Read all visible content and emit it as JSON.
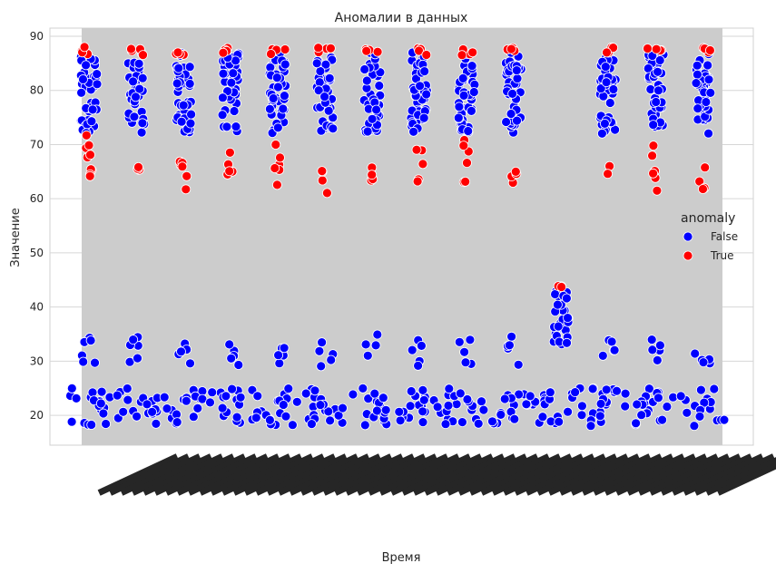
{
  "chart_data": {
    "type": "scatter",
    "title": "Аномалии в данных",
    "xlabel": "Время",
    "ylabel": "Значение",
    "ylim": [
      14.5,
      91.5
    ],
    "yticks": [
      20,
      30,
      40,
      50,
      60,
      70,
      80,
      90
    ],
    "grid": true,
    "legend": {
      "title": "anomaly",
      "placement": "center-right"
    },
    "x_tick_labels_note_hidden": true,
    "series": [
      {
        "name": "False",
        "color": "#0000ff",
        "clusters": [
          {
            "group": 0,
            "y_range": [
              72,
              87
            ],
            "count": 45
          },
          {
            "group": 1,
            "y_range": [
              72,
              87
            ],
            "count": 40
          },
          {
            "group": 2,
            "y_range": [
              72,
              87
            ],
            "count": 40
          },
          {
            "group": 3,
            "y_range": [
              72,
              87
            ],
            "count": 40
          },
          {
            "group": 4,
            "y_range": [
              72,
              87
            ],
            "count": 40
          },
          {
            "group": 5,
            "y_range": [
              72,
              87
            ],
            "count": 40
          },
          {
            "group": 6,
            "y_range": [
              72,
              87
            ],
            "count": 40
          },
          {
            "group": 7,
            "y_range": [
              72,
              87
            ],
            "count": 40
          },
          {
            "group": 8,
            "y_range": [
              72,
              87
            ],
            "count": 40
          },
          {
            "group": 9,
            "y_range": [
              72,
              87
            ],
            "count": 40
          },
          {
            "group": 11,
            "y_range": [
              72,
              87
            ],
            "count": 40
          },
          {
            "group": 12,
            "y_range": [
              72,
              87
            ],
            "count": 40
          },
          {
            "group": 13,
            "y_range": [
              72,
              87
            ],
            "count": 40
          },
          {
            "group": 10,
            "y_range": [
              33,
              43
            ],
            "count": 30
          },
          {
            "group": 0,
            "y_range": [
              29,
              35
            ],
            "count": 6
          },
          {
            "group": 1,
            "y_range": [
              29,
              35
            ],
            "count": 6
          },
          {
            "group": 2,
            "y_range": [
              29,
              34
            ],
            "count": 5
          },
          {
            "group": 3,
            "y_range": [
              29,
              34
            ],
            "count": 5
          },
          {
            "group": 4,
            "y_range": [
              29,
              34
            ],
            "count": 5
          },
          {
            "group": 5,
            "y_range": [
              29,
              34
            ],
            "count": 5
          },
          {
            "group": 6,
            "y_range": [
              31,
              35
            ],
            "count": 4
          },
          {
            "group": 7,
            "y_range": [
              29,
              34
            ],
            "count": 5
          },
          {
            "group": 8,
            "y_range": [
              29,
              34
            ],
            "count": 5
          },
          {
            "group": 9,
            "y_range": [
              29,
              35
            ],
            "count": 5
          },
          {
            "group": 11,
            "y_range": [
              29,
              34
            ],
            "count": 5
          },
          {
            "group": 12,
            "y_range": [
              29,
              34
            ],
            "count": 5
          },
          {
            "group": 13,
            "y_range": [
              29,
              35
            ],
            "count": 5
          },
          {
            "group": "all",
            "y_range": [
              18,
              25
            ],
            "count": 260
          }
        ]
      },
      {
        "name": "True",
        "color": "#ff0000",
        "clusters": [
          {
            "group": 0,
            "y_range": [
              63,
              72
            ],
            "count": 9
          },
          {
            "group": 1,
            "y_range": [
              64,
              66
            ],
            "count": 3
          },
          {
            "group": 2,
            "y_range": [
              61,
              71
            ],
            "count": 6
          },
          {
            "group": 3,
            "y_range": [
              62,
              71
            ],
            "count": 5
          },
          {
            "group": 4,
            "y_range": [
              61,
              71
            ],
            "count": 6
          },
          {
            "group": 5,
            "y_range": [
              61,
              66
            ],
            "count": 4
          },
          {
            "group": 6,
            "y_range": [
              61,
              68
            ],
            "count": 4
          },
          {
            "group": 7,
            "y_range": [
              63,
              72
            ],
            "count": 5
          },
          {
            "group": 8,
            "y_range": [
              62,
              71
            ],
            "count": 6
          },
          {
            "group": 9,
            "y_range": [
              62,
              68
            ],
            "count": 4
          },
          {
            "group": 11,
            "y_range": [
              61,
              67
            ],
            "count": 2
          },
          {
            "group": 12,
            "y_range": [
              61,
              71
            ],
            "count": 6
          },
          {
            "group": 13,
            "y_range": [
              61,
              67
            ],
            "count": 4
          },
          {
            "group": "top",
            "y_range": [
              86.5,
              88
            ],
            "count": 40
          },
          {
            "group": 10,
            "y_range": [
              43.5,
              44
            ],
            "count": 3
          }
        ]
      }
    ]
  }
}
